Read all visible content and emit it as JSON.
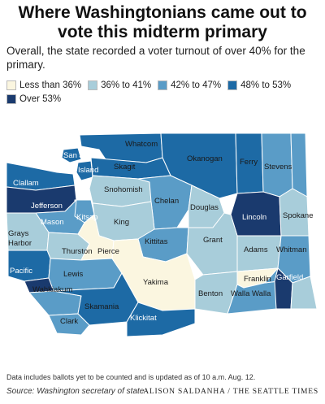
{
  "header": {
    "title_line1": "Where Washingtonians came out to",
    "title_line2": "vote this midterm primary",
    "subtitle": "Overall, the state recorded a voter turnout of over 40% for the primary."
  },
  "legend": {
    "items": [
      {
        "label": "Less than 36%",
        "color": "#fbf6e0"
      },
      {
        "label": "36% to 41%",
        "color": "#a8cdda"
      },
      {
        "label": "42% to 47%",
        "color": "#5a9cc7"
      },
      {
        "label": "48% to 53%",
        "color": "#1d6aa5"
      },
      {
        "label": "Over 53%",
        "color": "#1a3a6e"
      }
    ]
  },
  "map": {
    "counties": {
      "whatcom": "Whatcom",
      "okanogan": "Okanogan",
      "ferry": "Ferry",
      "stevens": "Stevens",
      "sanjuan": "San Juan",
      "island": "Island",
      "skagit": "Skagit",
      "clallam": "Clallam",
      "snohomish": "Snohomish",
      "jefferson": "Jefferson",
      "chelan": "Chelan",
      "douglas": "Douglas",
      "lincoln": "Lincoln",
      "spokane": "Spokane",
      "kitsap": "Kitsap",
      "king": "King",
      "grays": "Grays",
      "harbor": "Harbor",
      "mason": "Mason",
      "kittitas": "Kittitas",
      "grant": "Grant",
      "adams": "Adams",
      "whitman": "Whitman",
      "thurston": "Thurston",
      "pierce": "Pierce",
      "pacific": "Pacific",
      "lewis": "Lewis",
      "yakima": "Yakima",
      "franklin": "Franklin",
      "garfield": "Garfield",
      "benton": "Benton",
      "wallawalla": "Walla Walla",
      "wahkiakum": "Wahkiakum",
      "skamania": "Skamania",
      "clark": "Clark",
      "klickitat": "Klickitat"
    }
  },
  "footer": {
    "note": "Data includes ballots yet to be counted and is updated as of 10 a.m. Aug. 12.",
    "source": "Source: Washington secretary of state",
    "credit": "ALISON SALDANHA / THE SEATTLE TIMES"
  }
}
